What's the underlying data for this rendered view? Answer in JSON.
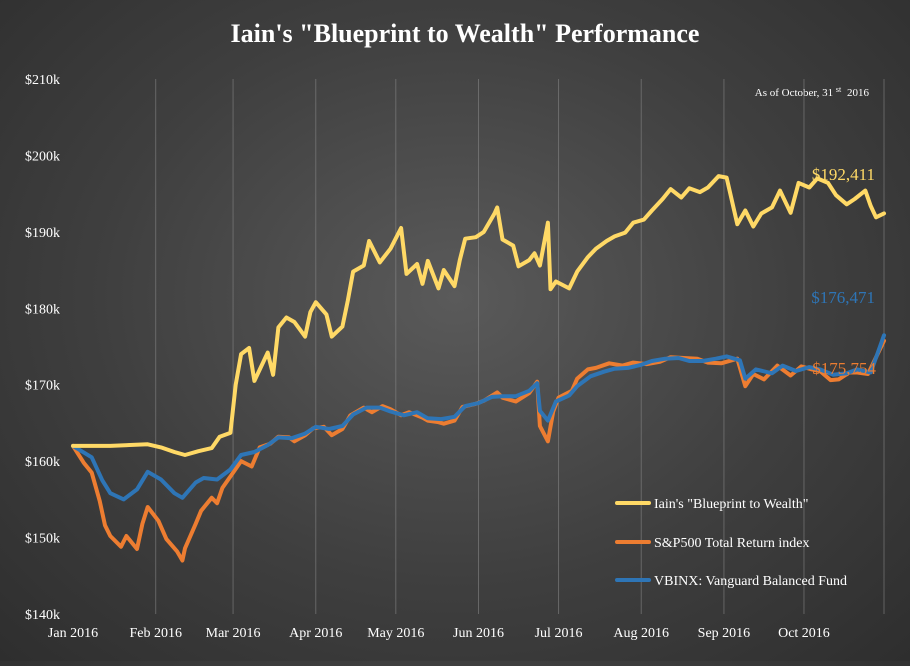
{
  "chart_data": {
    "type": "line",
    "title": "Iain's \"Blueprint to Wealth\" Performance",
    "as_of_prefix": "As of October, 31",
    "as_of_sup": "st",
    "as_of_year": "2016",
    "y_ticks": [
      "$140k",
      "$150k",
      "$160k",
      "$170k",
      "$180k",
      "$190k",
      "$200k",
      "$210k"
    ],
    "y_tick_values": [
      140000,
      150000,
      160000,
      170000,
      180000,
      190000,
      200000,
      210000
    ],
    "ylim": [
      140000,
      210000
    ],
    "x_ticks": [
      "Jan 2016",
      "Feb 2016",
      "Mar 2016",
      "Apr 2016",
      "May 2016",
      "Jun 2016",
      "Jul 2016",
      "Aug 2016",
      "Sep 2016",
      "Oct 2016"
    ],
    "x_tick_values": [
      "2016-01-01",
      "2016-02-01",
      "2016-03-01",
      "2016-04-01",
      "2016-05-01",
      "2016-06-01",
      "2016-07-01",
      "2016-08-01",
      "2016-09-01",
      "2016-10-01"
    ],
    "xlim": [
      "2016-01-01",
      "2016-10-31"
    ],
    "grid": "vertical",
    "legend_position": "bottom-right",
    "series": [
      {
        "name": "Iain's \"Blueprint to Wealth\"",
        "color": "#ffd966",
        "end_label": "$192,411",
        "points": [
          [
            "2016-01-01",
            162000
          ],
          [
            "2016-01-15",
            162000
          ],
          [
            "2016-01-29",
            162200
          ],
          [
            "2016-02-03",
            161800
          ],
          [
            "2016-02-08",
            161200
          ],
          [
            "2016-02-12",
            160800
          ],
          [
            "2016-02-17",
            161300
          ],
          [
            "2016-02-22",
            161700
          ],
          [
            "2016-02-25",
            163200
          ],
          [
            "2016-02-29",
            163700
          ],
          [
            "2016-03-02",
            170000
          ],
          [
            "2016-03-04",
            174000
          ],
          [
            "2016-03-07",
            174800
          ],
          [
            "2016-03-09",
            170500
          ],
          [
            "2016-03-14",
            174200
          ],
          [
            "2016-03-16",
            171300
          ],
          [
            "2016-03-18",
            177500
          ],
          [
            "2016-03-21",
            178800
          ],
          [
            "2016-03-24",
            178200
          ],
          [
            "2016-03-28",
            176300
          ],
          [
            "2016-03-30",
            179500
          ],
          [
            "2016-04-01",
            180800
          ],
          [
            "2016-04-05",
            179200
          ],
          [
            "2016-04-07",
            176300
          ],
          [
            "2016-04-11",
            177600
          ],
          [
            "2016-04-13",
            181000
          ],
          [
            "2016-04-15",
            184800
          ],
          [
            "2016-04-19",
            185600
          ],
          [
            "2016-04-21",
            188800
          ],
          [
            "2016-04-25",
            186000
          ],
          [
            "2016-04-29",
            187800
          ],
          [
            "2016-05-03",
            190500
          ],
          [
            "2016-05-05",
            184500
          ],
          [
            "2016-05-09",
            185800
          ],
          [
            "2016-05-11",
            183200
          ],
          [
            "2016-05-13",
            186200
          ],
          [
            "2016-05-17",
            182600
          ],
          [
            "2016-05-19",
            185000
          ],
          [
            "2016-05-23",
            182900
          ],
          [
            "2016-05-25",
            186300
          ],
          [
            "2016-05-27",
            189100
          ],
          [
            "2016-05-31",
            189300
          ],
          [
            "2016-06-03",
            190000
          ],
          [
            "2016-06-07",
            192400
          ],
          [
            "2016-06-08",
            193200
          ],
          [
            "2016-06-10",
            189000
          ],
          [
            "2016-06-14",
            188200
          ],
          [
            "2016-06-16",
            185500
          ],
          [
            "2016-06-20",
            186300
          ],
          [
            "2016-06-22",
            187200
          ],
          [
            "2016-06-24",
            185600
          ],
          [
            "2016-06-27",
            191200
          ],
          [
            "2016-06-28",
            182500
          ],
          [
            "2016-06-30",
            183500
          ],
          [
            "2016-07-05",
            182600
          ],
          [
            "2016-07-08",
            184800
          ],
          [
            "2016-07-12",
            186700
          ],
          [
            "2016-07-15",
            187800
          ],
          [
            "2016-07-19",
            188800
          ],
          [
            "2016-07-22",
            189400
          ],
          [
            "2016-07-26",
            189900
          ],
          [
            "2016-07-29",
            191200
          ],
          [
            "2016-08-02",
            191600
          ],
          [
            "2016-08-05",
            192800
          ],
          [
            "2016-08-09",
            194300
          ],
          [
            "2016-08-12",
            195600
          ],
          [
            "2016-08-16",
            194500
          ],
          [
            "2016-08-19",
            195700
          ],
          [
            "2016-08-23",
            195200
          ],
          [
            "2016-08-26",
            195800
          ],
          [
            "2016-08-30",
            197300
          ],
          [
            "2016-09-02",
            197100
          ],
          [
            "2016-09-06",
            191000
          ],
          [
            "2016-09-09",
            192800
          ],
          [
            "2016-09-12",
            190700
          ],
          [
            "2016-09-15",
            192400
          ],
          [
            "2016-09-19",
            193200
          ],
          [
            "2016-09-22",
            195400
          ],
          [
            "2016-09-26",
            192500
          ],
          [
            "2016-09-29",
            196400
          ],
          [
            "2016-10-03",
            195800
          ],
          [
            "2016-10-06",
            197000
          ],
          [
            "2016-10-10",
            196400
          ],
          [
            "2016-10-13",
            194800
          ],
          [
            "2016-10-17",
            193600
          ],
          [
            "2016-10-20",
            194300
          ],
          [
            "2016-10-24",
            195400
          ],
          [
            "2016-10-26",
            193400
          ],
          [
            "2016-10-28",
            191900
          ],
          [
            "2016-10-31",
            192411
          ]
        ]
      },
      {
        "name": "S&P500 Total Return index",
        "color": "#ed7d31",
        "end_label": "$175,754",
        "points": [
          [
            "2016-01-01",
            162000
          ],
          [
            "2016-01-05",
            159800
          ],
          [
            "2016-01-08",
            158500
          ],
          [
            "2016-01-11",
            154800
          ],
          [
            "2016-01-13",
            151600
          ],
          [
            "2016-01-15",
            150200
          ],
          [
            "2016-01-19",
            148800
          ],
          [
            "2016-01-21",
            150200
          ],
          [
            "2016-01-25",
            148500
          ],
          [
            "2016-01-27",
            151800
          ],
          [
            "2016-01-29",
            154000
          ],
          [
            "2016-02-02",
            152200
          ],
          [
            "2016-02-05",
            149800
          ],
          [
            "2016-02-09",
            148200
          ],
          [
            "2016-02-11",
            147000
          ],
          [
            "2016-02-12",
            148600
          ],
          [
            "2016-02-16",
            151800
          ],
          [
            "2016-02-18",
            153500
          ],
          [
            "2016-02-22",
            155200
          ],
          [
            "2016-02-24",
            154500
          ],
          [
            "2016-02-26",
            156500
          ],
          [
            "2016-03-01",
            158500
          ],
          [
            "2016-03-04",
            160000
          ],
          [
            "2016-03-08",
            159300
          ],
          [
            "2016-03-11",
            161800
          ],
          [
            "2016-03-15",
            162300
          ],
          [
            "2016-03-18",
            163200
          ],
          [
            "2016-03-22",
            163100
          ],
          [
            "2016-03-24",
            162600
          ],
          [
            "2016-03-28",
            163400
          ],
          [
            "2016-03-31",
            164300
          ],
          [
            "2016-04-04",
            164500
          ],
          [
            "2016-04-07",
            163400
          ],
          [
            "2016-04-11",
            164200
          ],
          [
            "2016-04-14",
            166000
          ],
          [
            "2016-04-19",
            167000
          ],
          [
            "2016-04-22",
            166400
          ],
          [
            "2016-04-26",
            167200
          ],
          [
            "2016-04-29",
            166800
          ],
          [
            "2016-05-03",
            166000
          ],
          [
            "2016-05-06",
            166400
          ],
          [
            "2016-05-11",
            165700
          ],
          [
            "2016-05-13",
            165300
          ],
          [
            "2016-05-17",
            165100
          ],
          [
            "2016-05-19",
            164900
          ],
          [
            "2016-05-23",
            165300
          ],
          [
            "2016-05-26",
            167100
          ],
          [
            "2016-05-31",
            167500
          ],
          [
            "2016-06-03",
            167900
          ],
          [
            "2016-06-08",
            169000
          ],
          [
            "2016-06-10",
            168300
          ],
          [
            "2016-06-15",
            167800
          ],
          [
            "2016-06-20",
            168900
          ],
          [
            "2016-06-23",
            170400
          ],
          [
            "2016-06-24",
            164600
          ],
          [
            "2016-06-27",
            162600
          ],
          [
            "2016-06-29",
            166500
          ],
          [
            "2016-07-01",
            168300
          ],
          [
            "2016-07-06",
            169200
          ],
          [
            "2016-07-08",
            170800
          ],
          [
            "2016-07-12",
            172000
          ],
          [
            "2016-07-15",
            172200
          ],
          [
            "2016-07-20",
            172800
          ],
          [
            "2016-07-25",
            172500
          ],
          [
            "2016-07-29",
            172900
          ],
          [
            "2016-08-03",
            172700
          ],
          [
            "2016-08-08",
            173000
          ],
          [
            "2016-08-12",
            173600
          ],
          [
            "2016-08-17",
            173500
          ],
          [
            "2016-08-22",
            173400
          ],
          [
            "2016-08-26",
            172900
          ],
          [
            "2016-08-31",
            172800
          ],
          [
            "2016-09-06",
            173400
          ],
          [
            "2016-09-09",
            169800
          ],
          [
            "2016-09-12",
            171400
          ],
          [
            "2016-09-16",
            170700
          ],
          [
            "2016-09-21",
            172500
          ],
          [
            "2016-09-26",
            171200
          ],
          [
            "2016-09-30",
            172400
          ],
          [
            "2016-10-04",
            172000
          ],
          [
            "2016-10-07",
            171800
          ],
          [
            "2016-10-11",
            170600
          ],
          [
            "2016-10-14",
            170700
          ],
          [
            "2016-10-18",
            171600
          ],
          [
            "2016-10-21",
            171600
          ],
          [
            "2016-10-25",
            171400
          ],
          [
            "2016-10-31",
            175754
          ]
        ]
      },
      {
        "name": "VBINX: Vanguard Balanced Fund",
        "color": "#2e75b6",
        "end_label": "$176,471",
        "points": [
          [
            "2016-01-01",
            162000
          ],
          [
            "2016-01-08",
            160500
          ],
          [
            "2016-01-12",
            157500
          ],
          [
            "2016-01-15",
            155800
          ],
          [
            "2016-01-20",
            155000
          ],
          [
            "2016-01-25",
            156300
          ],
          [
            "2016-01-29",
            158600
          ],
          [
            "2016-02-03",
            157600
          ],
          [
            "2016-02-08",
            155800
          ],
          [
            "2016-02-11",
            155200
          ],
          [
            "2016-02-16",
            157200
          ],
          [
            "2016-02-19",
            157800
          ],
          [
            "2016-02-24",
            157600
          ],
          [
            "2016-02-29",
            158900
          ],
          [
            "2016-03-04",
            160800
          ],
          [
            "2016-03-09",
            161200
          ],
          [
            "2016-03-14",
            162100
          ],
          [
            "2016-03-18",
            163100
          ],
          [
            "2016-03-23",
            163000
          ],
          [
            "2016-03-28",
            163600
          ],
          [
            "2016-04-01",
            164500
          ],
          [
            "2016-04-06",
            164200
          ],
          [
            "2016-04-11",
            164600
          ],
          [
            "2016-04-15",
            166100
          ],
          [
            "2016-04-20",
            167000
          ],
          [
            "2016-04-25",
            167000
          ],
          [
            "2016-04-29",
            166500
          ],
          [
            "2016-05-04",
            166000
          ],
          [
            "2016-05-09",
            166400
          ],
          [
            "2016-05-13",
            165600
          ],
          [
            "2016-05-18",
            165500
          ],
          [
            "2016-05-23",
            165800
          ],
          [
            "2016-05-27",
            167200
          ],
          [
            "2016-06-01",
            167600
          ],
          [
            "2016-06-06",
            168400
          ],
          [
            "2016-06-10",
            168500
          ],
          [
            "2016-06-15",
            168500
          ],
          [
            "2016-06-20",
            169200
          ],
          [
            "2016-06-23",
            170200
          ],
          [
            "2016-06-24",
            166600
          ],
          [
            "2016-06-27",
            165300
          ],
          [
            "2016-06-30",
            167800
          ],
          [
            "2016-07-05",
            168600
          ],
          [
            "2016-07-08",
            169800
          ],
          [
            "2016-07-13",
            171100
          ],
          [
            "2016-07-18",
            171700
          ],
          [
            "2016-07-22",
            172100
          ],
          [
            "2016-07-27",
            172200
          ],
          [
            "2016-08-01",
            172600
          ],
          [
            "2016-08-05",
            173100
          ],
          [
            "2016-08-10",
            173400
          ],
          [
            "2016-08-15",
            173500
          ],
          [
            "2016-08-19",
            173100
          ],
          [
            "2016-08-24",
            173100
          ],
          [
            "2016-08-29",
            173400
          ],
          [
            "2016-09-02",
            173700
          ],
          [
            "2016-09-07",
            173200
          ],
          [
            "2016-09-09",
            170800
          ],
          [
            "2016-09-13",
            172000
          ],
          [
            "2016-09-19",
            171500
          ],
          [
            "2016-09-23",
            172500
          ],
          [
            "2016-09-28",
            171800
          ],
          [
            "2016-10-03",
            172300
          ],
          [
            "2016-10-07",
            172000
          ],
          [
            "2016-10-12",
            171300
          ],
          [
            "2016-10-17",
            171500
          ],
          [
            "2016-10-21",
            172000
          ],
          [
            "2016-10-26",
            171600
          ],
          [
            "2016-10-31",
            176471
          ]
        ]
      }
    ]
  }
}
